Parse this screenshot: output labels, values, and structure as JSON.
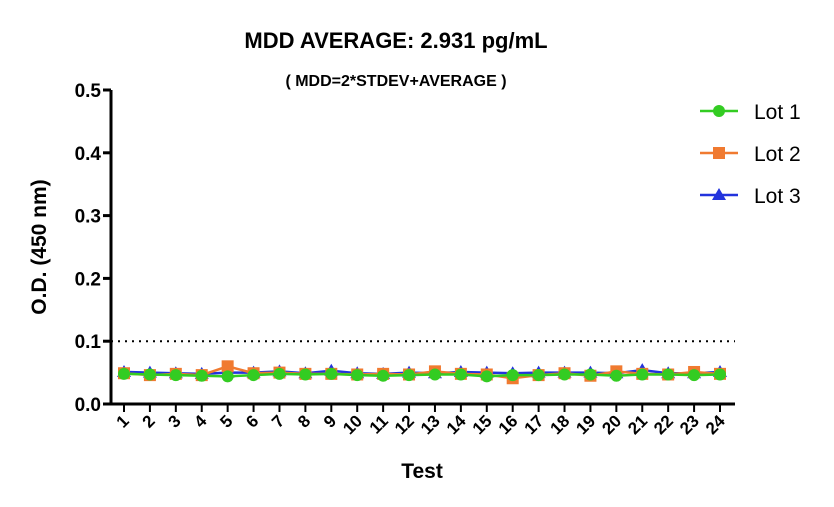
{
  "chart_data": {
    "type": "line",
    "title": "MDD AVERAGE:  2.931 pg/mL",
    "subtitle": "( MDD=2*STDEV+AVERAGE )",
    "x_label": "Test",
    "y_label": "O.D. (450 nm)",
    "categories": [
      "1",
      "2",
      "3",
      "4",
      "5",
      "6",
      "7",
      "8",
      "9",
      "10",
      "11",
      "12",
      "13",
      "14",
      "15",
      "16",
      "17",
      "18",
      "19",
      "20",
      "21",
      "22",
      "23",
      "24"
    ],
    "series": [
      {
        "name": "Lot 1",
        "color": "#33cc22",
        "marker": "circle",
        "values": [
          0.048,
          0.047,
          0.046,
          0.045,
          0.044,
          0.046,
          0.048,
          0.047,
          0.048,
          0.046,
          0.045,
          0.046,
          0.047,
          0.047,
          0.044,
          0.046,
          0.046,
          0.047,
          0.047,
          0.045,
          0.047,
          0.047,
          0.046,
          0.047
        ]
      },
      {
        "name": "Lot 2",
        "color": "#f07a30",
        "marker": "square",
        "values": [
          0.049,
          0.046,
          0.048,
          0.046,
          0.06,
          0.049,
          0.05,
          0.048,
          0.048,
          0.047,
          0.048,
          0.047,
          0.052,
          0.048,
          0.047,
          0.041,
          0.046,
          0.049,
          0.045,
          0.052,
          0.048,
          0.047,
          0.051,
          0.048
        ]
      },
      {
        "name": "Lot 3",
        "color": "#2233dd",
        "marker": "triangle",
        "values": [
          0.051,
          0.05,
          0.049,
          0.048,
          0.05,
          0.05,
          0.052,
          0.049,
          0.053,
          0.049,
          0.048,
          0.05,
          0.049,
          0.051,
          0.05,
          0.049,
          0.05,
          0.05,
          0.05,
          0.049,
          0.054,
          0.049,
          0.049,
          0.051
        ]
      }
    ],
    "ylim": [
      0,
      0.5
    ],
    "yticks": [
      {
        "value": 0,
        "label": "0.0"
      },
      0.1,
      0.2,
      0.3,
      0.4,
      0.5
    ],
    "reference_line": 0.1,
    "legend": "top-right"
  }
}
